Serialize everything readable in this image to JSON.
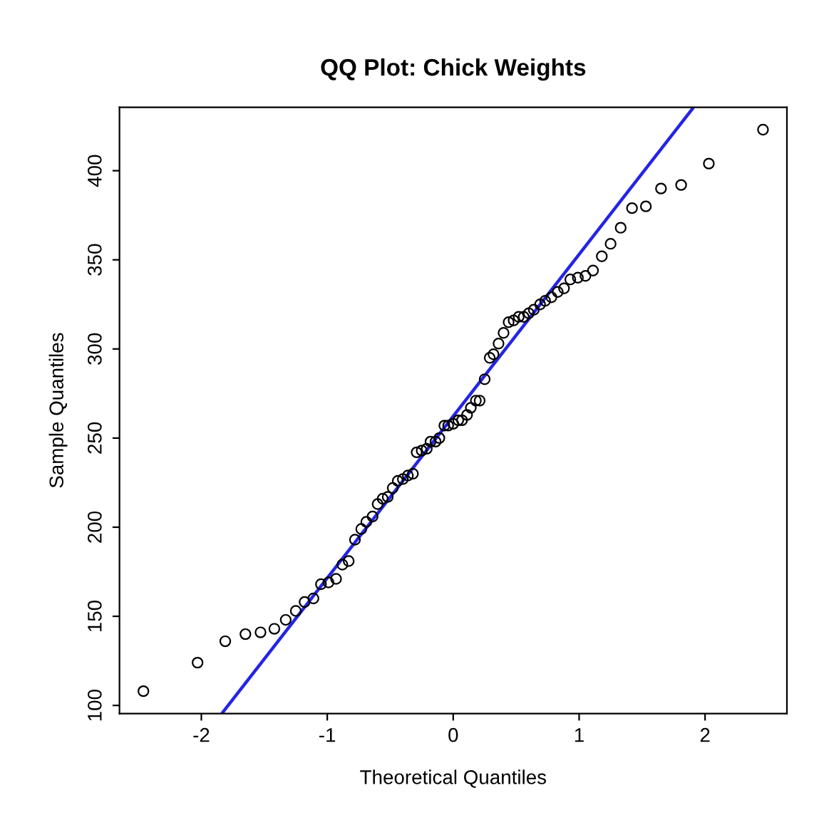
{
  "chart_data": {
    "type": "scatter",
    "title": "QQ Plot: Chick Weights",
    "xlabel": "Theoretical Quantiles",
    "ylabel": "Sample Quantiles",
    "xlim": [
      -2.65,
      2.65
    ],
    "ylim": [
      95.4,
      435.6
    ],
    "xticks": [
      -2,
      -1,
      0,
      1,
      2
    ],
    "yticks": [
      100,
      150,
      200,
      250,
      300,
      350,
      400
    ],
    "grid": false,
    "legend": false,
    "series": [
      {
        "type": "scatter",
        "marker": "circle",
        "color": "#000000",
        "x": [
          -2.46,
          -2.03,
          -1.81,
          -1.65,
          -1.53,
          -1.42,
          -1.33,
          -1.25,
          -1.18,
          -1.11,
          -1.05,
          -0.99,
          -0.93,
          -0.88,
          -0.83,
          -0.78,
          -0.73,
          -0.69,
          -0.64,
          -0.6,
          -0.56,
          -0.52,
          -0.48,
          -0.44,
          -0.4,
          -0.36,
          -0.32,
          -0.29,
          -0.25,
          -0.21,
          -0.18,
          -0.14,
          -0.11,
          -0.07,
          -0.04,
          0,
          0.04,
          0.07,
          0.11,
          0.14,
          0.18,
          0.21,
          0.25,
          0.29,
          0.32,
          0.36,
          0.4,
          0.44,
          0.48,
          0.52,
          0.56,
          0.6,
          0.64,
          0.69,
          0.73,
          0.78,
          0.83,
          0.88,
          0.93,
          0.99,
          1.05,
          1.11,
          1.18,
          1.25,
          1.33,
          1.42,
          1.53,
          1.65,
          1.81,
          2.03,
          2.46
        ],
        "values": [
          108,
          124,
          136,
          140,
          141,
          143,
          148,
          153,
          158,
          160,
          168,
          169,
          171,
          179,
          181,
          193,
          199,
          203,
          206,
          213,
          216,
          217,
          222,
          226,
          227,
          229,
          230,
          242,
          243,
          244,
          248,
          248,
          250,
          257,
          257,
          258,
          260,
          260,
          263,
          267,
          271,
          271,
          283,
          295,
          297,
          303,
          309,
          315,
          316,
          318,
          318,
          320,
          322,
          325,
          327,
          329,
          332,
          334,
          339,
          340,
          341,
          344,
          352,
          359,
          368,
          379,
          380,
          390,
          392,
          404,
          423
        ]
      },
      {
        "type": "line",
        "color": "#2424e6",
        "x": [
          -1.83,
          1.9
        ],
        "values": [
          96.1,
          434.8
        ],
        "line_style": "solid"
      }
    ]
  }
}
